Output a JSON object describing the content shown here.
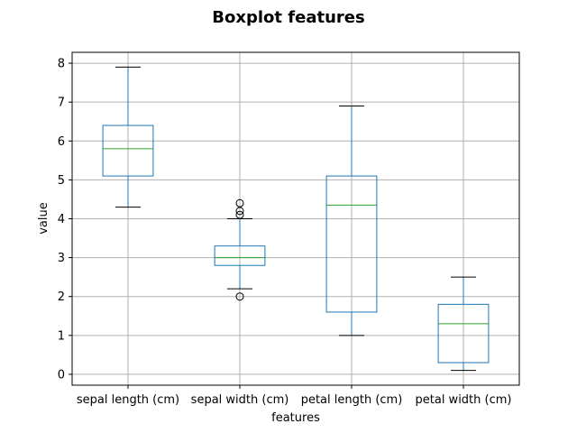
{
  "chart_data": {
    "type": "boxplot",
    "title": "Boxplot features",
    "xlabel": "features",
    "ylabel": "value",
    "ylim": [
      -0.28,
      8.28
    ],
    "yticks": [
      0,
      1,
      2,
      3,
      4,
      5,
      6,
      7,
      8
    ],
    "grid": true,
    "categories": [
      "sepal length (cm)",
      "sepal width (cm)",
      "petal length (cm)",
      "petal width (cm)"
    ],
    "boxes": [
      {
        "whisker_low": 4.3,
        "q1": 5.1,
        "median": 5.8,
        "q3": 6.4,
        "whisker_high": 7.9,
        "outliers": []
      },
      {
        "whisker_low": 2.2,
        "q1": 2.8,
        "median": 3.0,
        "q3": 3.3,
        "whisker_high": 4.0,
        "outliers": [
          4.1,
          4.2,
          4.4,
          2.0
        ]
      },
      {
        "whisker_low": 1.0,
        "q1": 1.6,
        "median": 4.35,
        "q3": 5.1,
        "whisker_high": 6.9,
        "outliers": []
      },
      {
        "whisker_low": 0.1,
        "q1": 0.3,
        "median": 1.3,
        "q3": 1.8,
        "whisker_high": 2.5,
        "outliers": []
      }
    ],
    "colors": {
      "box": "#1f77b4",
      "median": "#2ca02c",
      "whisker_cap": "#000000",
      "outlier": "#000000",
      "grid": "#b0b0b0"
    }
  }
}
